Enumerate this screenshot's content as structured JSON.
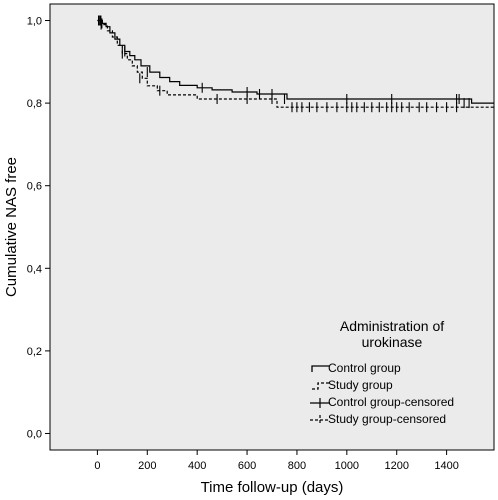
{
  "chart_data": {
    "type": "line",
    "title": "",
    "xlabel": "Time follow-up (days)",
    "ylabel": "Cumulative NAS free",
    "xlim": [
      -190,
      1590
    ],
    "ylim": [
      -0.04,
      1.04
    ],
    "x_ticks": [
      "0",
      "200",
      "400",
      "600",
      "800",
      "1000",
      "1200",
      "1400"
    ],
    "x_tick_values": [
      0,
      200,
      400,
      600,
      800,
      1000,
      1200,
      1400
    ],
    "y_ticks": [
      "0,0",
      "0,2",
      "0,4",
      "0,6",
      "0,8",
      "1,0"
    ],
    "y_tick_values": [
      0,
      0.2,
      0.4,
      0.6,
      0.8,
      1.0
    ],
    "grid": false,
    "legend_title": "Administration of urokinase",
    "legend_title_lines": [
      "Administration of",
      "urokinase"
    ],
    "legend_position": "bottom-right",
    "background_color": "#ebebeb",
    "series": [
      {
        "name": "Control group",
        "style": "solid",
        "x": [
          0,
          20,
          35,
          50,
          70,
          90,
          110,
          130,
          150,
          175,
          210,
          250,
          290,
          330,
          400,
          460,
          540,
          640,
          760,
          1500,
          1590
        ],
        "y": [
          1.0,
          0.993,
          0.985,
          0.97,
          0.955,
          0.94,
          0.925,
          0.915,
          0.905,
          0.89,
          0.875,
          0.862,
          0.852,
          0.843,
          0.837,
          0.832,
          0.827,
          0.822,
          0.81,
          0.8,
          0.8
        ]
      },
      {
        "name": "Study group",
        "style": "dashed",
        "x": [
          0,
          20,
          40,
          60,
          80,
          100,
          120,
          140,
          160,
          180,
          200,
          240,
          280,
          400,
          720,
          1590
        ],
        "y": [
          1.0,
          0.99,
          0.975,
          0.96,
          0.94,
          0.92,
          0.905,
          0.89,
          0.875,
          0.86,
          0.842,
          0.83,
          0.82,
          0.81,
          0.79,
          0.79
        ]
      }
    ],
    "censored": [
      {
        "name": "Control group-censored",
        "x": [
          5,
          10,
          14,
          18,
          110,
          200,
          420,
          600,
          650,
          700,
          750,
          1000,
          1180,
          1440,
          1450,
          1470,
          1490
        ],
        "y": [
          1.0,
          1.0,
          1.0,
          0.993,
          0.925,
          0.875,
          0.837,
          0.827,
          0.822,
          0.822,
          0.81,
          0.81,
          0.81,
          0.81,
          0.81,
          0.8,
          0.8
        ]
      },
      {
        "name": "Study group-censored",
        "x": [
          5,
          10,
          15,
          100,
          170,
          250,
          480,
          600,
          700,
          780,
          800,
          820,
          850,
          880,
          920,
          960,
          1000,
          1020,
          1040,
          1070,
          1100,
          1130,
          1160,
          1180,
          1200,
          1220,
          1250,
          1290,
          1320,
          1360,
          1400,
          1440
        ],
        "y": [
          1.0,
          1.0,
          0.99,
          0.92,
          0.86,
          0.83,
          0.81,
          0.81,
          0.81,
          0.79,
          0.79,
          0.79,
          0.79,
          0.79,
          0.79,
          0.79,
          0.79,
          0.79,
          0.79,
          0.79,
          0.79,
          0.79,
          0.79,
          0.79,
          0.79,
          0.79,
          0.79,
          0.79,
          0.79,
          0.79,
          0.79,
          0.79
        ]
      }
    ]
  }
}
